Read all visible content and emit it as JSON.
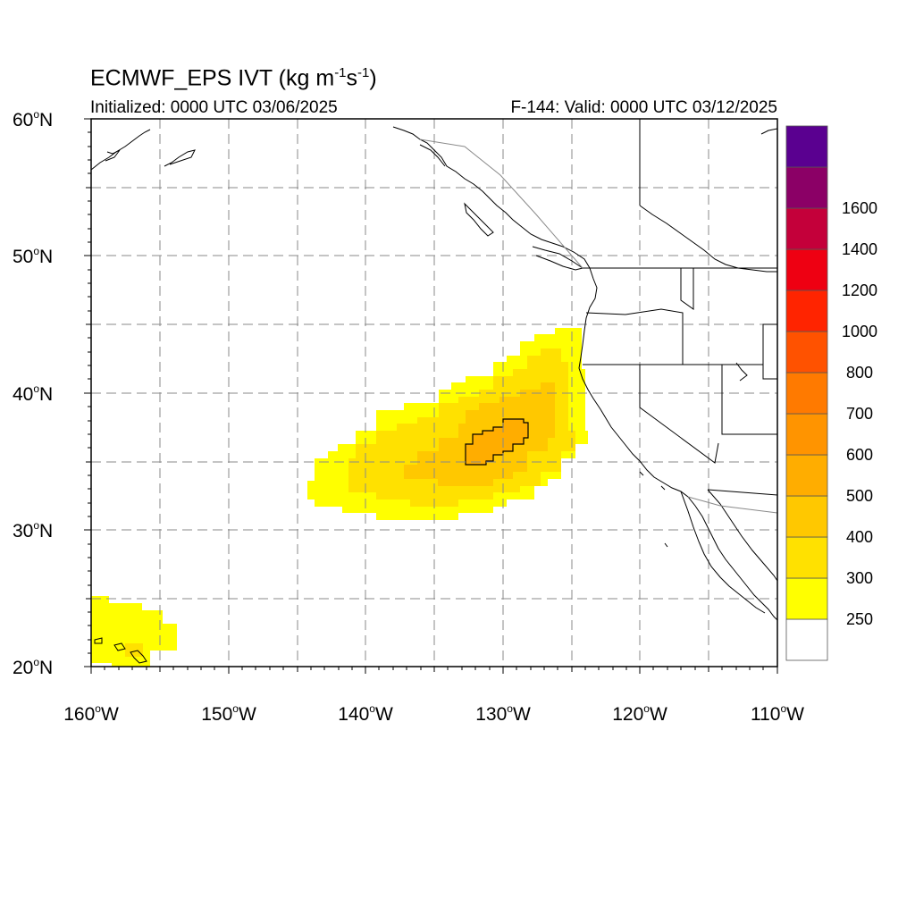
{
  "header": {
    "title_prefix": "ECMWF_EPS IVT (kg m",
    "title_exp1": "-1",
    "title_mid": "s",
    "title_exp2": "-1",
    "title_suffix": ")",
    "initialized": "Initialized: 0000 UTC 03/06/2025",
    "valid": "F-144: Valid: 0000 UTC 03/12/2025"
  },
  "map": {
    "projection": "cylindrical equidistant",
    "lon_range": [
      -160,
      -110
    ],
    "lat_range": [
      20,
      60
    ],
    "grid": "dashed gray every 5 degrees",
    "lat_labels": [
      "60",
      "50",
      "40",
      "30",
      "20"
    ],
    "lat_suffix": "N",
    "lon_labels": [
      "160",
      "150",
      "140",
      "130",
      "120",
      "110"
    ],
    "lon_suffix": "W",
    "features": {
      "atmospheric_river_core_lon": -130,
      "atmospheric_river_core_lat": 36.5,
      "max_contour_level": 500
    }
  },
  "colorbar": {
    "labels": [
      "250",
      "300",
      "400",
      "500",
      "600",
      "700",
      "800",
      "1000",
      "1200",
      "1400",
      "1600"
    ],
    "colors": [
      "#ffffff",
      "#ffff00",
      "#ffe100",
      "#ffc800",
      "#ffad00",
      "#ff9400",
      "#ff7a00",
      "#ff5200",
      "#ff2400",
      "#ee0012",
      "#c4003a",
      "#8b0066",
      "#5a0090"
    ]
  },
  "chart_data": {
    "type": "heatmap",
    "title": "ECMWF_EPS IVT (kg m-1s-1)",
    "subtitle_left": "Initialized: 0000 UTC 03/06/2025",
    "subtitle_right": "F-144: Valid: 0000 UTC 03/12/2025",
    "x_range": [
      -160,
      -110
    ],
    "y_range": [
      20,
      60
    ],
    "levels": [
      250,
      300,
      400,
      500,
      600,
      700,
      800,
      1000,
      1200,
      1400,
      1600
    ],
    "observed_bands": [
      {
        "level": 250,
        "region": "atmospheric river 30-45N, 125-144W; Hawaii region 20-25N, 154-160W"
      },
      {
        "level": 300,
        "region": "32-43N, 126-140W"
      },
      {
        "level": 400,
        "region": "33-41N, 127-137W"
      },
      {
        "level": 500,
        "region": "35-38N, 128.5-132.5W"
      }
    ]
  }
}
